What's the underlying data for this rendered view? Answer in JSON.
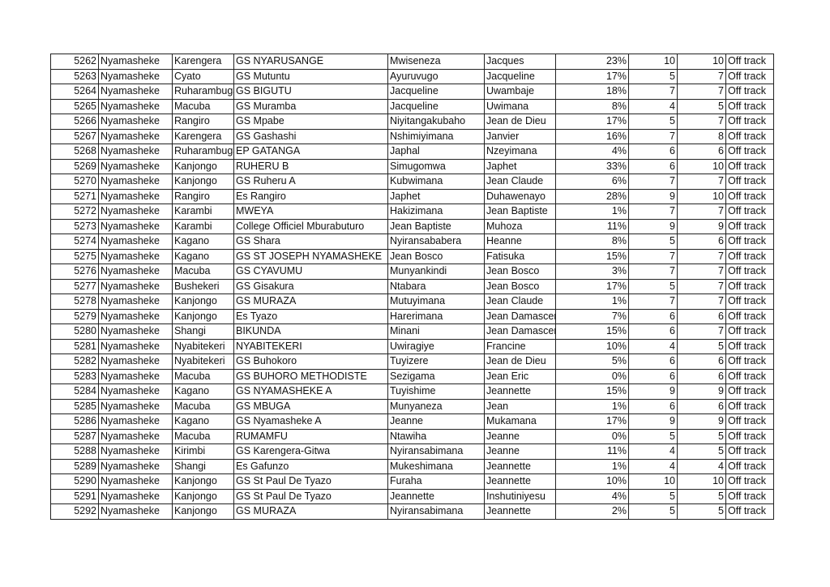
{
  "rows": [
    [
      "5262",
      "Nyamasheke",
      "Karengera",
      "GS NYARUSANGE",
      "Mwiseneza",
      "Jacques",
      "23%",
      "10",
      "10",
      "Off track"
    ],
    [
      "5263",
      "Nyamasheke",
      "Cyato",
      "GS Mutuntu",
      "Ayuruvugo",
      "Jacqueline",
      "17%",
      "5",
      "7",
      "Off track"
    ],
    [
      "5264",
      "Nyamasheke",
      "Ruharambuga",
      "GS BIGUTU",
      "Jacqueline",
      "Uwambaje",
      "18%",
      "7",
      "7",
      "Off track"
    ],
    [
      "5265",
      "Nyamasheke",
      "Macuba",
      "GS Muramba",
      "Jacqueline",
      "Uwimana",
      "8%",
      "4",
      "5",
      "Off track"
    ],
    [
      "5266",
      "Nyamasheke",
      "Rangiro",
      "GS Mpabe",
      "Niyitangakubaho",
      "Jean de Dieu",
      "17%",
      "5",
      "7",
      "Off track"
    ],
    [
      "5267",
      "Nyamasheke",
      "Karengera",
      "GS Gashashi",
      "Nshimiyimana",
      "Janvier",
      "16%",
      "7",
      "8",
      "Off track"
    ],
    [
      "5268",
      "Nyamasheke",
      "Ruharambuga",
      "EP GATANGA",
      "Japhal",
      "Nzeyimana",
      "4%",
      "6",
      "6",
      "Off track"
    ],
    [
      "5269",
      "Nyamasheke",
      "Kanjongo",
      "RUHERU B",
      "Simugomwa",
      "Japhet",
      "33%",
      "6",
      "10",
      "Off track"
    ],
    [
      "5270",
      "Nyamasheke",
      "Kanjongo",
      "GS Ruheru A",
      "Kubwimana",
      "Jean Claude",
      "6%",
      "7",
      "7",
      "Off track"
    ],
    [
      "5271",
      "Nyamasheke",
      "Rangiro",
      "Es Rangiro",
      "Japhet",
      "Duhawenayo",
      "28%",
      "9",
      "10",
      "Off track"
    ],
    [
      "5272",
      "Nyamasheke",
      "Karambi",
      "MWEYA",
      "Hakizimana",
      "Jean Baptiste",
      "1%",
      "7",
      "7",
      "Off track"
    ],
    [
      "5273",
      "Nyamasheke",
      "Karambi",
      "College Officiel Mburabuturo",
      "Jean Baptiste",
      "Muhoza",
      "11%",
      "9",
      "9",
      "Off track"
    ],
    [
      "5274",
      "Nyamasheke",
      "Kagano",
      "GS Shara",
      "Nyiransababera",
      "Heanne",
      "8%",
      "5",
      "6",
      "Off track"
    ],
    [
      "5275",
      "Nyamasheke",
      "Kagano",
      "GS ST JOSEPH NYAMASHEKE",
      "Jean Bosco",
      "Fatisuka",
      "15%",
      "7",
      "7",
      "Off track"
    ],
    [
      "5276",
      "Nyamasheke",
      "Macuba",
      "GS CYAVUMU",
      "Munyankindi",
      "Jean Bosco",
      "3%",
      "7",
      "7",
      "Off track"
    ],
    [
      "5277",
      "Nyamasheke",
      "Bushekeri",
      "GS Gisakura",
      "Ntabara",
      "Jean Bosco",
      "17%",
      "5",
      "7",
      "Off track"
    ],
    [
      "5278",
      "Nyamasheke",
      "Kanjongo",
      "GS MURAZA",
      "Mutuyimana",
      "Jean Claude",
      "1%",
      "7",
      "7",
      "Off track"
    ],
    [
      "5279",
      "Nyamasheke",
      "Kanjongo",
      "Es Tyazo",
      "Harerimana",
      "Jean Damascene",
      "7%",
      "6",
      "6",
      "Off track"
    ],
    [
      "5280",
      "Nyamasheke",
      "Shangi",
      "BIKUNDA",
      "Minani",
      "Jean Damascene",
      "15%",
      "6",
      "7",
      "Off track"
    ],
    [
      "5281",
      "Nyamasheke",
      "Nyabitekeri",
      "NYABITEKERI",
      "Uwiragiye",
      "Francine",
      "10%",
      "4",
      "5",
      "Off track"
    ],
    [
      "5282",
      "Nyamasheke",
      "Nyabitekeri",
      "GS Buhokoro",
      "Tuyizere",
      "Jean de Dieu",
      "5%",
      "6",
      "6",
      "Off track"
    ],
    [
      "5283",
      "Nyamasheke",
      "Macuba",
      "GS BUHORO METHODISTE",
      "Sezigama",
      "Jean Eric",
      "0%",
      "6",
      "6",
      "Off track"
    ],
    [
      "5284",
      "Nyamasheke",
      "Kagano",
      "GS NYAMASHEKE A",
      "Tuyishime",
      "Jeannette",
      "15%",
      "9",
      "9",
      "Off track"
    ],
    [
      "5285",
      "Nyamasheke",
      "Macuba",
      "GS MBUGA",
      "Munyaneza",
      "Jean",
      "1%",
      "6",
      "6",
      "Off track"
    ],
    [
      "5286",
      "Nyamasheke",
      "Kagano",
      "GS Nyamasheke A",
      "Jeanne",
      "Mukamana",
      "17%",
      "9",
      "9",
      "Off track"
    ],
    [
      "5287",
      "Nyamasheke",
      "Macuba",
      "RUMAMFU",
      "Ntawiha",
      "Jeanne",
      "0%",
      "5",
      "5",
      "Off track"
    ],
    [
      "5288",
      "Nyamasheke",
      "Kirimbi",
      "GS Karengera-Gitwa",
      "Nyiransabimana",
      "Jeanne",
      "11%",
      "4",
      "5",
      "Off track"
    ],
    [
      "5289",
      "Nyamasheke",
      "Shangi",
      "Es Gafunzo",
      "Mukeshimana",
      "Jeannette",
      "1%",
      "4",
      "4",
      "Off track"
    ],
    [
      "5290",
      "Nyamasheke",
      "Kanjongo",
      "GS St Paul De Tyazo",
      "Furaha",
      "Jeannette",
      "10%",
      "10",
      "10",
      "Off track"
    ],
    [
      "5291",
      "Nyamasheke",
      "Kanjongo",
      "GS St Paul De Tyazo",
      "Jeannette",
      "Inshutiniyesu",
      "4%",
      "5",
      "5",
      "Off track"
    ],
    [
      "5292",
      "Nyamasheke",
      "Kanjongo",
      "GS MURAZA",
      "Nyiransabimana",
      "Jeannette",
      "2%",
      "5",
      "5",
      "Off track"
    ]
  ]
}
